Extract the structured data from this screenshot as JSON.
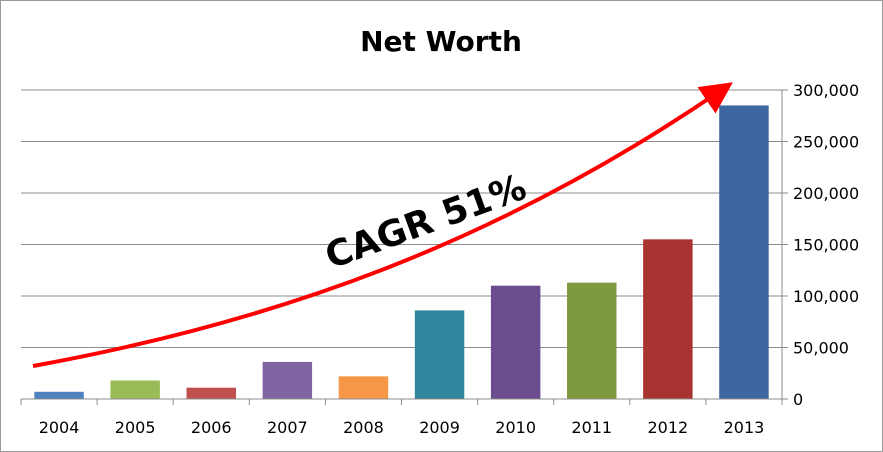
{
  "chart_data": {
    "type": "bar",
    "title": "Net Worth",
    "xlabel": "",
    "ylabel": "",
    "categories": [
      "2004",
      "2005",
      "2006",
      "2007",
      "2008",
      "2009",
      "2010",
      "2011",
      "2012",
      "2013"
    ],
    "values": [
      7000,
      18000,
      11000,
      36000,
      22000,
      86000,
      110000,
      113000,
      155000,
      285000
    ],
    "colors": [
      "#4f81bd",
      "#9bbb59",
      "#c0504d",
      "#8064a2",
      "#f79646",
      "#31859c",
      "#6b4c8e",
      "#7f9a3e",
      "#a83431",
      "#3e66a0"
    ],
    "ylim": [
      0,
      300000
    ],
    "yticks": [
      0,
      50000,
      100000,
      150000,
      200000,
      250000,
      300000
    ],
    "ytick_labels": [
      "0",
      "50,000",
      "100,000",
      "150,000",
      "200,000",
      "250,000",
      "300,000"
    ],
    "y_axis_side": "right",
    "grid": true,
    "legend": "none",
    "annotation": {
      "text": "CAGR 51%",
      "arrow_color": "#ff0000"
    }
  }
}
